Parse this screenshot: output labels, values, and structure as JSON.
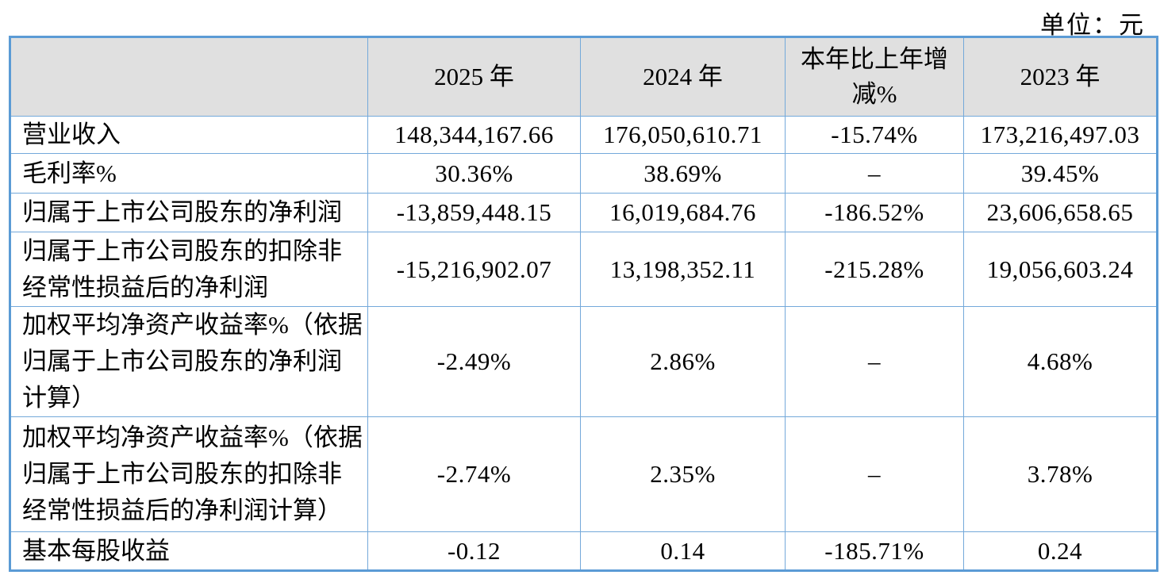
{
  "page": {
    "unit_label": "单位：元"
  },
  "table": {
    "colors": {
      "outer_border": "#5b9bd5",
      "inner_border": "#74a9da",
      "header_background": "#e0e0e0"
    },
    "header": {
      "corner": "",
      "col_2025": "2025 年",
      "col_2024": "2024 年",
      "col_change_lines": [
        "本年比上年增",
        "减%"
      ],
      "col_2023": "2023 年"
    },
    "rows": [
      {
        "label_lines": [
          "营业收入"
        ],
        "v2025": "148,344,167.66",
        "v2024": "176,050,610.71",
        "change": "-15.74%",
        "v2023": "173,216,497.03"
      },
      {
        "label_lines": [
          "毛利率%"
        ],
        "v2025": "30.36%",
        "v2024": "38.69%",
        "change": "–",
        "v2023": "39.45%"
      },
      {
        "label_lines": [
          "归属于上市公司股东的净利润"
        ],
        "v2025": "-13,859,448.15",
        "v2024": "16,019,684.76",
        "change": "-186.52%",
        "v2023": "23,606,658.65"
      },
      {
        "label_lines": [
          "归属于上市公司股东的扣除非",
          "经常性损益后的净利润"
        ],
        "v2025": "-15,216,902.07",
        "v2024": "13,198,352.11",
        "change": "-215.28%",
        "v2023": "19,056,603.24"
      },
      {
        "label_lines": [
          "加权平均净资产收益率%（依据",
          "归属于上市公司股东的净利润",
          "计算）"
        ],
        "v2025": "-2.49%",
        "v2024": "2.86%",
        "change": "–",
        "v2023": "4.68%"
      },
      {
        "label_lines": [
          "加权平均净资产收益率%（依据",
          "归属于上市公司股东的扣除非",
          "经常性损益后的净利润计算）"
        ],
        "v2025": "-2.74%",
        "v2024": "2.35%",
        "change": "–",
        "v2023": "3.78%"
      },
      {
        "label_lines": [
          "基本每股收益"
        ],
        "v2025": "-0.12",
        "v2024": "0.14",
        "change": "-185.71%",
        "v2023": "0.24"
      }
    ]
  }
}
